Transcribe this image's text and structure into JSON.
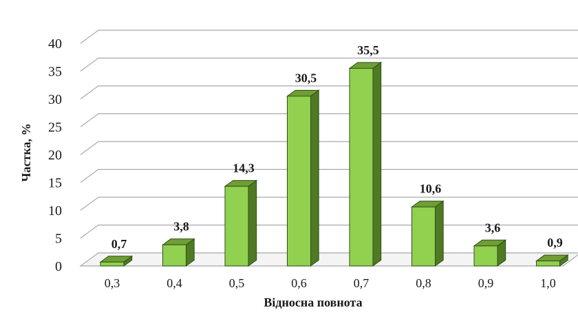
{
  "chart_data": {
    "type": "bar",
    "categories": [
      "0,3",
      "0,4",
      "0,5",
      "0,6",
      "0,7",
      "0,8",
      "0,9",
      "1,0"
    ],
    "values": [
      0.7,
      3.8,
      14.3,
      30.5,
      35.5,
      10.6,
      3.6,
      0.9
    ],
    "data_labels": [
      "0,7",
      "3,8",
      "14,3",
      "30,5",
      "35,5",
      "10,6",
      "3,6",
      "0,9"
    ],
    "xlabel": "Відносна повнота",
    "ylabel": "Частка, %",
    "ylim": [
      0,
      40
    ],
    "yticks": [
      0,
      5,
      10,
      15,
      20,
      25,
      30,
      35,
      40
    ],
    "grid": true,
    "legend": "none",
    "colors": {
      "bar_front": "#92d050",
      "bar_top": "#6f9e34",
      "bar_side": "#4f7a24",
      "bar_edge": "#2f4f14"
    }
  }
}
